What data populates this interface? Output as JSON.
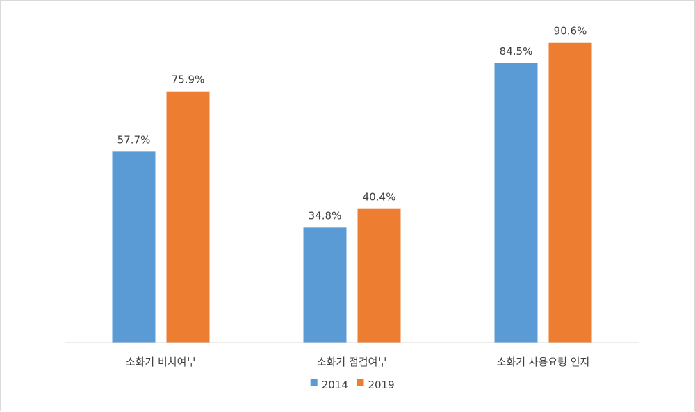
{
  "chart_data": {
    "type": "bar",
    "categories": [
      "소화기 비치여부",
      "소화기 점검여부",
      "소화기 사용요령 인지"
    ],
    "series": [
      {
        "name": "2014",
        "values": [
          57.7,
          34.8,
          84.5
        ],
        "labels": [
          "57.7%",
          "34.8%",
          "84.5%"
        ],
        "color": "#5b9bd5"
      },
      {
        "name": "2019",
        "values": [
          75.9,
          40.4,
          90.6
        ],
        "labels": [
          "75.9%",
          "40.4%",
          "90.6%"
        ],
        "color": "#ed7d31"
      }
    ],
    "ylim": [
      0,
      100
    ],
    "unit": "%",
    "grid": false,
    "legend_position": "bottom",
    "axis_color": "#d9d9d9"
  }
}
